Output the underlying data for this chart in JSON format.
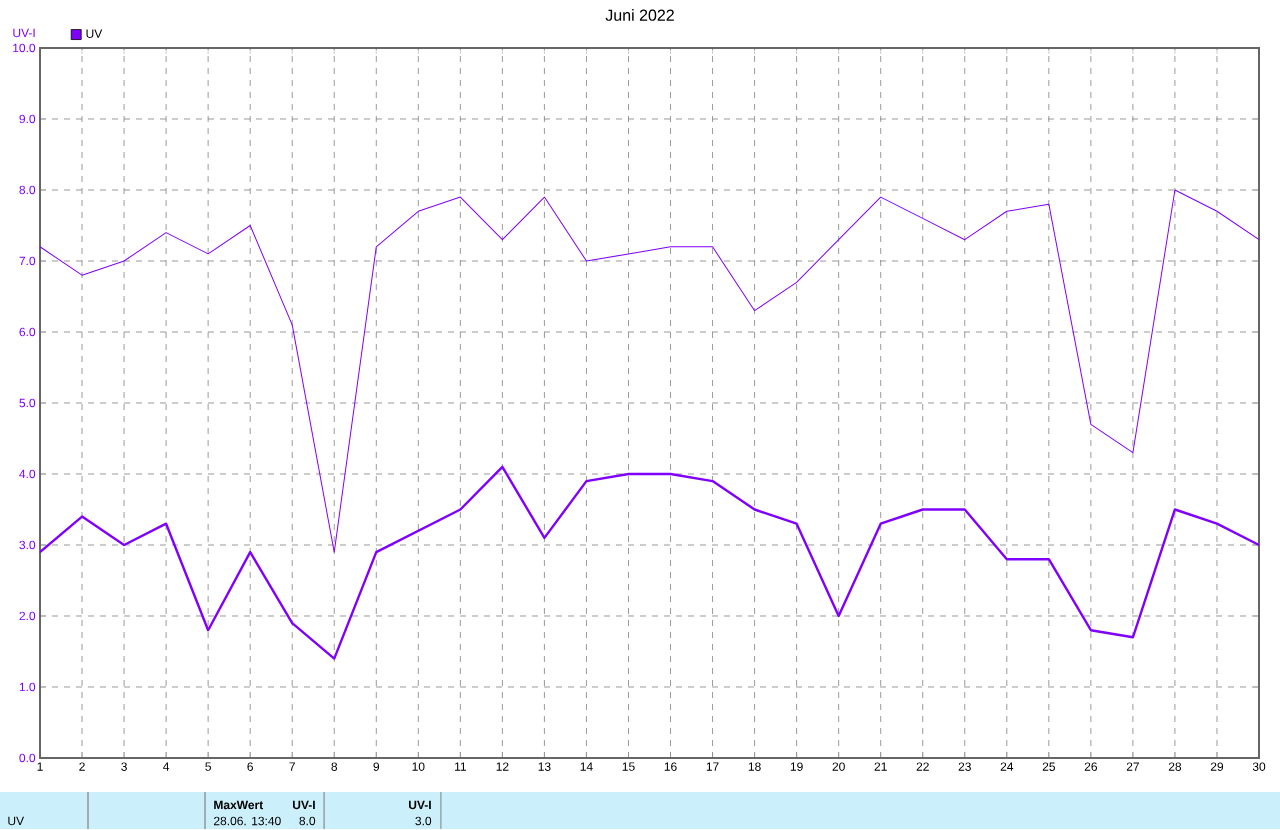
{
  "chart_data": {
    "type": "line",
    "title": "Juni 2022",
    "ylabel": "UV-I",
    "x": [
      1,
      2,
      3,
      4,
      5,
      6,
      7,
      8,
      9,
      10,
      11,
      12,
      13,
      14,
      15,
      16,
      17,
      18,
      19,
      20,
      21,
      22,
      23,
      24,
      25,
      26,
      27,
      28,
      29,
      30
    ],
    "series": [
      {
        "name": "UV",
        "color": "#8000ff",
        "values": [
          7.2,
          6.8,
          7.0,
          7.4,
          7.1,
          7.5,
          6.1,
          2.9,
          7.2,
          7.7,
          7.9,
          7.3,
          7.9,
          7.0,
          7.1,
          7.2,
          7.2,
          6.3,
          6.7,
          7.3,
          7.9,
          7.6,
          7.3,
          7.7,
          7.8,
          4.7,
          4.3,
          8.0,
          7.7,
          7.3
        ]
      },
      {
        "color": "#8000ff",
        "values": [
          2.9,
          3.4,
          3.0,
          3.3,
          1.8,
          2.9,
          1.9,
          1.4,
          2.9,
          3.2,
          3.5,
          4.1,
          3.1,
          3.9,
          4.0,
          4.0,
          3.9,
          3.5,
          3.3,
          2.0,
          3.3,
          3.5,
          3.5,
          2.8,
          2.8,
          1.8,
          1.7,
          3.5,
          3.3,
          3.0
        ]
      }
    ],
    "xlim": [
      1,
      30
    ],
    "xticks": [
      1,
      2,
      3,
      4,
      5,
      6,
      7,
      8,
      9,
      10,
      11,
      12,
      13,
      14,
      15,
      16,
      17,
      18,
      19,
      20,
      21,
      22,
      23,
      24,
      25,
      26,
      27,
      28,
      29,
      30
    ],
    "ylim": [
      0,
      10
    ],
    "yticks": [
      {
        "value": 0,
        "label": "0.0"
      },
      {
        "value": 1,
        "label": "1.0"
      },
      {
        "value": 2,
        "label": "2.0"
      },
      {
        "value": 3,
        "label": "3.0"
      },
      {
        "value": 4,
        "label": "4.0"
      },
      {
        "value": 5,
        "label": "5.0"
      },
      {
        "value": 6,
        "label": "6.0"
      },
      {
        "value": 7,
        "label": "7.0"
      },
      {
        "value": 8,
        "label": "8.0"
      },
      {
        "value": 9,
        "label": "9.0"
      },
      {
        "value": 10,
        "label": "10.0"
      }
    ],
    "grid": true,
    "legend": "top left",
    "annotations": [
      "UV",
      "MaxWert",
      "UV-I",
      "28.06.  13:40",
      "8.0",
      "UV-I",
      "3.0"
    ]
  }
}
